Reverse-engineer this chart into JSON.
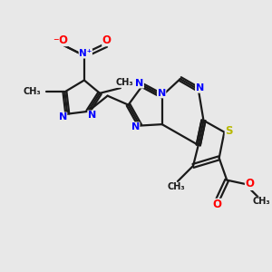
{
  "bg_color": "#e8e8e8",
  "bond_color": "#1a1a1a",
  "n_color": "#0000ff",
  "o_color": "#ff0000",
  "s_color": "#b8b800",
  "line_width": 1.6,
  "figsize": [
    3.0,
    3.0
  ],
  "dpi": 100,
  "xlim": [
    0,
    10
  ],
  "ylim": [
    0,
    10
  ]
}
